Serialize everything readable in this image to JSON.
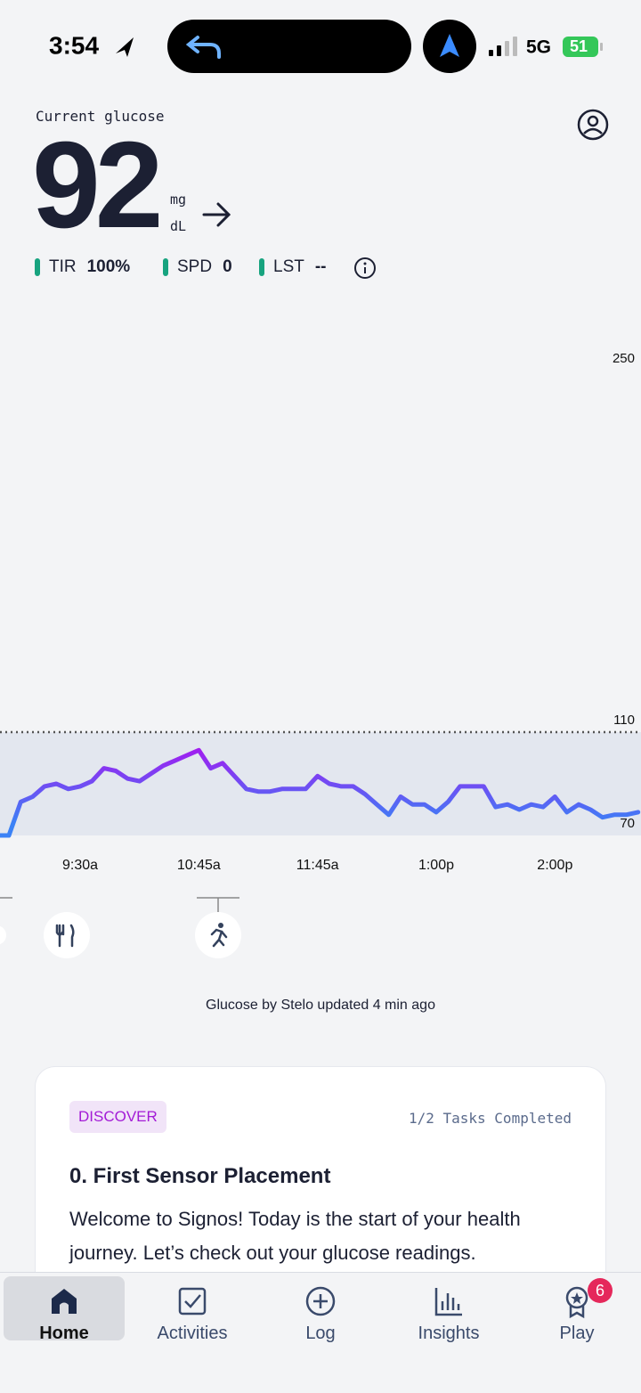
{
  "status_bar": {
    "time": "3:54",
    "network": "5G",
    "battery": "51"
  },
  "header": {
    "label": "Current glucose",
    "value": "92",
    "unit_top": "mg",
    "unit_bottom": "dL"
  },
  "stats": [
    {
      "label": "TIR",
      "value": "100%"
    },
    {
      "label": "SPD",
      "value": "0"
    },
    {
      "label": "LST",
      "value": "--"
    }
  ],
  "chart_data": {
    "type": "line",
    "categories": [
      null,
      null,
      null,
      null,
      null,
      null,
      null,
      "9:30a",
      null,
      null,
      null,
      null,
      null,
      null,
      null,
      null,
      null,
      "10:45a",
      null,
      null,
      null,
      null,
      null,
      null,
      null,
      null,
      null,
      "11:45a",
      null,
      null,
      null,
      null,
      null,
      null,
      null,
      null,
      null,
      "1:00p",
      null,
      null,
      null,
      null,
      null,
      null,
      null,
      null,
      null,
      "2:00p",
      null,
      null,
      null,
      null,
      null,
      null,
      null
    ],
    "values": [
      70,
      70,
      83,
      85,
      89,
      90,
      88,
      89,
      91,
      96,
      95,
      92,
      91,
      94,
      97,
      99,
      101,
      103,
      96,
      98,
      93,
      88,
      87,
      87,
      88,
      88,
      88,
      93,
      90,
      89,
      89,
      86,
      82,
      78,
      85,
      82,
      82,
      79,
      83,
      89,
      89,
      89,
      81,
      82,
      80,
      82,
      81,
      85,
      79,
      82,
      80,
      77,
      78,
      78,
      79
    ],
    "color_high": "#a21cf0",
    "color_low": "#3b82f6",
    "ylim": [
      70,
      250
    ],
    "yticks": [
      70,
      110,
      250
    ],
    "band": [
      70,
      110
    ],
    "band_color": "#e3e7ef",
    "grid": false
  },
  "source_note": "Glucose by Stelo updated 4 min ago",
  "card": {
    "tag": "DISCOVER",
    "progress": "1/2 Tasks Completed",
    "title": "0. First Sensor Placement",
    "body": "Welcome to Signos! Today is the start of your health journey. Let’s check out your glucose readings."
  },
  "tab_bar": [
    {
      "label": "Home"
    },
    {
      "label": "Activities"
    },
    {
      "label": "Log"
    },
    {
      "label": "Insights"
    },
    {
      "label": "Play",
      "badge": "6"
    }
  ]
}
